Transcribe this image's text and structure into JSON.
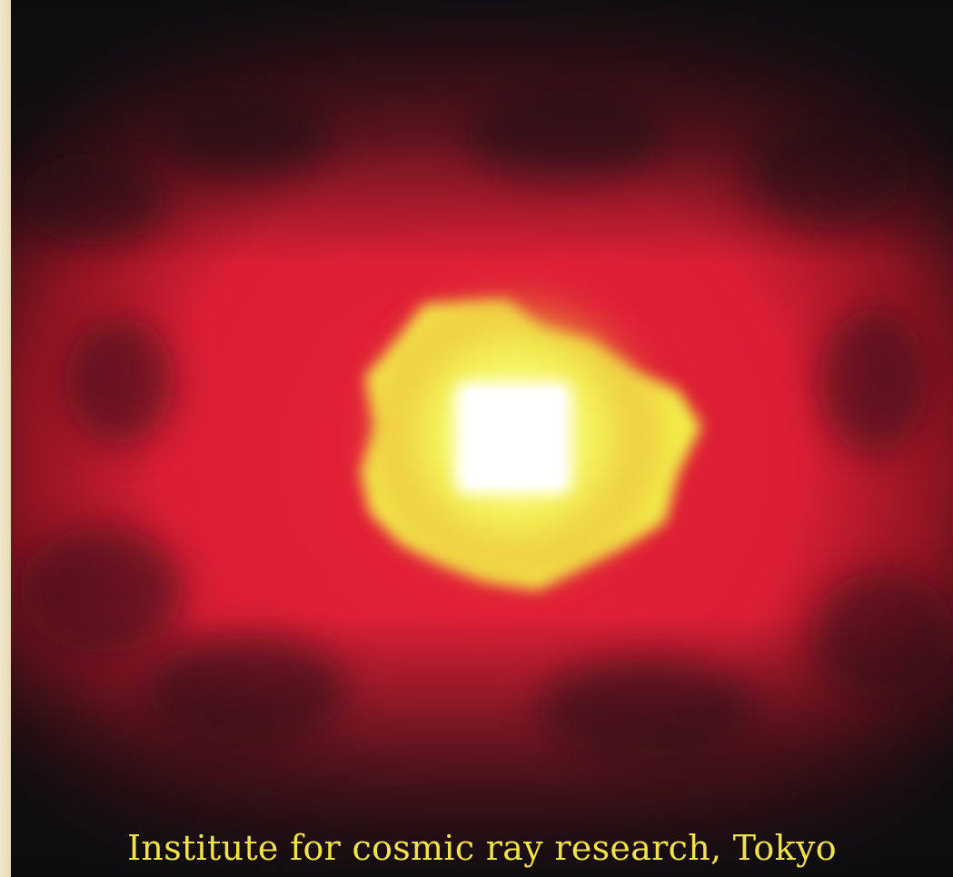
{
  "caption": "Institute for cosmic ray research, Tokyo",
  "image": {
    "subject": "neutrino-image-of-sun",
    "colors": {
      "background": "#0c0d0f",
      "glow_outer": "#c8182e",
      "glow_mid": "#e8233a",
      "halo": "#f3f24a",
      "core": "#ffffff",
      "caption": "#f1e24a",
      "page_border": "#efe3c6"
    }
  }
}
